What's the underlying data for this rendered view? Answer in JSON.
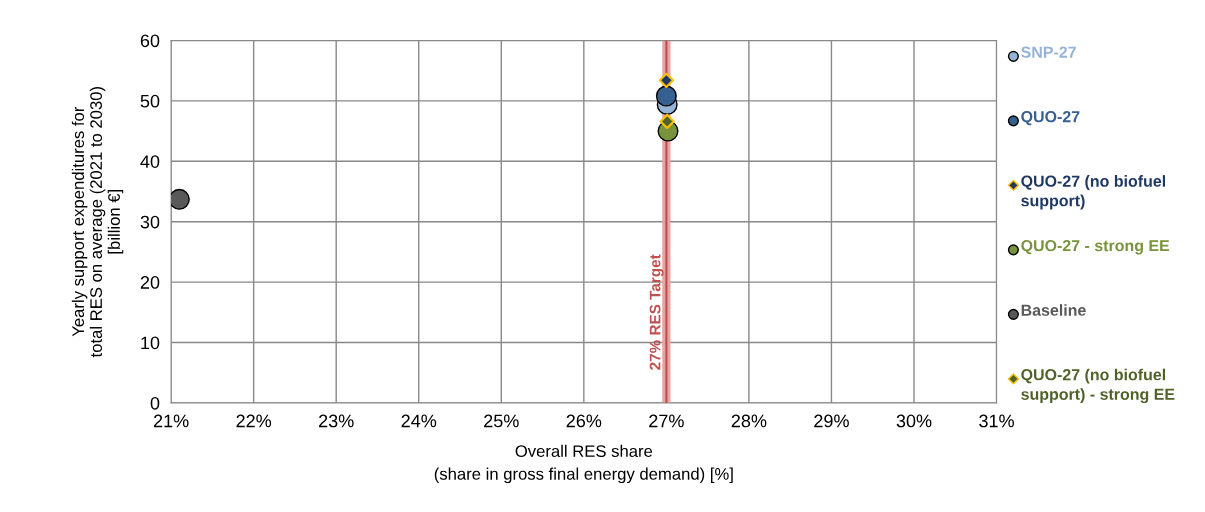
{
  "chart_data": {
    "type": "scatter",
    "xlabel": "Overall RES share\n(share in gross final energy demand) [%]",
    "ylabel": "Yearly support expenditures for\ntotal RES on average (2021 to 2030)\n[billion €]",
    "xlim": [
      21,
      31
    ],
    "xticks": [
      {
        "value": 21,
        "label": "21%"
      },
      {
        "value": 22,
        "label": "22%"
      },
      {
        "value": 23,
        "label": "23%"
      },
      {
        "value": 24,
        "label": "24%"
      },
      {
        "value": 25,
        "label": "25%"
      },
      {
        "value": 26,
        "label": "26%"
      },
      {
        "value": 27,
        "label": "27%"
      },
      {
        "value": 28,
        "label": "28%"
      },
      {
        "value": 29,
        "label": "29%"
      },
      {
        "value": 30,
        "label": "30%"
      },
      {
        "value": 31,
        "label": "31%"
      }
    ],
    "ylim": [
      0,
      60
    ],
    "yticks": [
      0,
      10,
      20,
      30,
      40,
      50,
      60
    ],
    "grid": true,
    "legend": "right",
    "bands": [
      {
        "axis": "x",
        "from": 26.95,
        "to": 27.05,
        "color": "#e6a5a3"
      }
    ],
    "ref_lines": [
      {
        "axis": "x",
        "value": 27,
        "label": "27% RES Target",
        "color": "#c0504d"
      }
    ],
    "series": [
      {
        "name": "SNP-27",
        "color": "#95b3d7",
        "marker": "circle",
        "x": [
          27.01
        ],
        "values": [
          49.4
        ]
      },
      {
        "name": "QUO-27",
        "color": "#376092",
        "marker": "circle",
        "x": [
          27.0
        ],
        "values": [
          50.8
        ]
      },
      {
        "name": "QUO-27 (no biofuel support)",
        "color": "#1f3864",
        "marker": "diamond",
        "x": [
          27.0
        ],
        "values": [
          53.4
        ]
      },
      {
        "name": "QUO-27 - strong EE",
        "color": "#77933c",
        "marker": "circle",
        "x": [
          27.02
        ],
        "values": [
          45.0
        ]
      },
      {
        "name": "Baseline",
        "color": "#595959",
        "marker": "circle",
        "x": [
          21.1
        ],
        "values": [
          33.7
        ]
      },
      {
        "name": "QUO-27 (no biofuel support) - strong EE",
        "color": "#4f6228",
        "marker": "diamond",
        "x": [
          27.01
        ],
        "values": [
          46.6
        ]
      }
    ]
  }
}
